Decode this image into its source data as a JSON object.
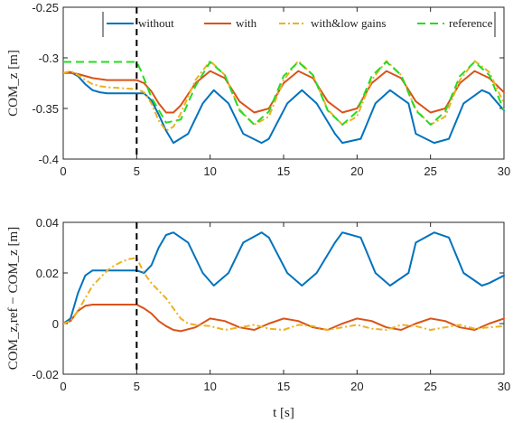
{
  "chart_data": [
    {
      "type": "line",
      "ylabel": "COM_z [m]",
      "xlim": [
        0,
        30
      ],
      "ylim": [
        -0.4,
        -0.25
      ],
      "xticks": [
        0,
        5,
        10,
        15,
        20,
        25,
        30
      ],
      "yticks": [
        -0.4,
        -0.35,
        -0.3,
        -0.25
      ],
      "xtick_labels": [
        "0",
        "5",
        "10",
        "15",
        "20",
        "25",
        "30"
      ],
      "ytick_labels": [
        "-0.4",
        "-0.35",
        "-0.3",
        "-0.25"
      ],
      "grid": false,
      "legend": "top, horizontal",
      "vline_x": 5,
      "series": [
        {
          "name": "without",
          "color": "#0072BD",
          "style": "solid",
          "x": [
            0,
            0.5,
            1.0,
            1.5,
            2.0,
            2.5,
            3,
            4,
            5,
            5.5,
            6.0,
            6.5,
            7.0,
            7.5,
            8.5,
            9.5,
            10.25,
            11.25,
            12.25,
            13.5,
            14.0,
            15.25,
            16.25,
            17.25,
            18.5,
            19.0,
            20.25,
            21.25,
            22.25,
            23.5,
            24.0,
            25.25,
            26.25,
            27.25,
            28.5,
            29.0,
            30.0
          ],
          "y": [
            -0.315,
            -0.314,
            -0.318,
            -0.326,
            -0.332,
            -0.334,
            -0.335,
            -0.335,
            -0.335,
            -0.335,
            -0.342,
            -0.356,
            -0.372,
            -0.384,
            -0.375,
            -0.345,
            -0.332,
            -0.345,
            -0.375,
            -0.384,
            -0.38,
            -0.345,
            -0.332,
            -0.345,
            -0.375,
            -0.384,
            -0.38,
            -0.345,
            -0.332,
            -0.345,
            -0.375,
            -0.384,
            -0.38,
            -0.345,
            -0.332,
            -0.335,
            -0.352
          ]
        },
        {
          "name": "with",
          "color": "#D95319",
          "style": "solid",
          "x": [
            0,
            0.5,
            1.0,
            2.0,
            3.0,
            4.0,
            5.0,
            5.5,
            6.0,
            6.5,
            7.0,
            7.5,
            8.0,
            9.0,
            10.0,
            11.0,
            12.0,
            13.0,
            14.0,
            15.0,
            16.0,
            17.0,
            18.0,
            19.0,
            20.0,
            21.0,
            22.0,
            23.0,
            24.0,
            25.0,
            26.0,
            27.0,
            28.0,
            29.0,
            30.0
          ],
          "y": [
            -0.315,
            -0.315,
            -0.316,
            -0.32,
            -0.322,
            -0.322,
            -0.322,
            -0.325,
            -0.333,
            -0.345,
            -0.354,
            -0.354,
            -0.347,
            -0.325,
            -0.313,
            -0.32,
            -0.343,
            -0.354,
            -0.35,
            -0.325,
            -0.313,
            -0.32,
            -0.343,
            -0.354,
            -0.35,
            -0.325,
            -0.313,
            -0.32,
            -0.343,
            -0.354,
            -0.35,
            -0.325,
            -0.313,
            -0.32,
            -0.334
          ]
        },
        {
          "name": "with&low gains",
          "color": "#EDB120",
          "style": "dashdot",
          "x": [
            0,
            0.5,
            1.0,
            1.5,
            2.0,
            2.5,
            3.0,
            4.0,
            5.0,
            5.5,
            6.0,
            6.5,
            7.0,
            7.5,
            8.0,
            9.0,
            10.0,
            11.0,
            12.0,
            13.0,
            14.0,
            15.0,
            16.0,
            17.0,
            18.0,
            19.0,
            20.0,
            21.0,
            22.0,
            23.0,
            24.0,
            25.0,
            26.0,
            27.0,
            28.0,
            29.0,
            30.0
          ],
          "y": [
            -0.315,
            -0.313,
            -0.317,
            -0.322,
            -0.326,
            -0.328,
            -0.329,
            -0.33,
            -0.331,
            -0.334,
            -0.345,
            -0.362,
            -0.372,
            -0.368,
            -0.355,
            -0.322,
            -0.303,
            -0.317,
            -0.351,
            -0.366,
            -0.358,
            -0.322,
            -0.303,
            -0.317,
            -0.351,
            -0.366,
            -0.358,
            -0.322,
            -0.303,
            -0.317,
            -0.351,
            -0.366,
            -0.358,
            -0.322,
            -0.303,
            -0.314,
            -0.345
          ]
        },
        {
          "name": "reference",
          "color": "#22DD22",
          "style": "dashed",
          "x": [
            0,
            1,
            2,
            3,
            4,
            5.0,
            5.3,
            6.0,
            7.0,
            8.0,
            9.0,
            10.0,
            11.0,
            12.0,
            13.0,
            14.0,
            15.0,
            16.0,
            17.0,
            18.0,
            19.0,
            20.0,
            21.0,
            22.0,
            23.0,
            24.0,
            25.0,
            26.0,
            27.0,
            28.0,
            29.0,
            30.0
          ],
          "y": [
            -0.304,
            -0.304,
            -0.304,
            -0.304,
            -0.304,
            -0.304,
            -0.313,
            -0.339,
            -0.364,
            -0.361,
            -0.328,
            -0.304,
            -0.317,
            -0.352,
            -0.366,
            -0.353,
            -0.318,
            -0.304,
            -0.317,
            -0.352,
            -0.366,
            -0.353,
            -0.318,
            -0.304,
            -0.317,
            -0.352,
            -0.366,
            -0.353,
            -0.318,
            -0.304,
            -0.317,
            -0.352
          ]
        }
      ]
    },
    {
      "type": "line",
      "xlabel": "t [s]",
      "ylabel": "COM_z,ref − COM_z [m]",
      "xlim": [
        0,
        30
      ],
      "ylim": [
        -0.02,
        0.04
      ],
      "xticks": [
        0,
        5,
        10,
        15,
        20,
        25,
        30
      ],
      "yticks": [
        -0.02,
        0,
        0.02,
        0.04
      ],
      "xtick_labels": [
        "0",
        "5",
        "10",
        "15",
        "20",
        "25",
        "30"
      ],
      "ytick_labels": [
        "-0.02",
        "0",
        "0.02",
        "0.04"
      ],
      "grid": false,
      "vline_x": 5,
      "series": [
        {
          "color": "#0072BD",
          "style": "solid",
          "x": [
            0,
            0.5,
            1.0,
            1.5,
            2.0,
            2.5,
            3.0,
            4.0,
            5.0,
            5.5,
            6.0,
            6.5,
            7.0,
            7.5,
            8.5,
            9.5,
            10.25,
            11.25,
            12.25,
            13.5,
            14.0,
            15.25,
            16.25,
            17.25,
            18.5,
            19.0,
            20.25,
            21.25,
            22.25,
            23.5,
            24.0,
            25.25,
            26.25,
            27.25,
            28.5,
            29.0,
            30.0
          ],
          "y": [
            0,
            0.002,
            0.012,
            0.019,
            0.021,
            0.021,
            0.021,
            0.021,
            0.021,
            0.02,
            0.023,
            0.03,
            0.035,
            0.036,
            0.032,
            0.02,
            0.015,
            0.02,
            0.032,
            0.036,
            0.034,
            0.02,
            0.015,
            0.02,
            0.032,
            0.036,
            0.034,
            0.02,
            0.015,
            0.02,
            0.032,
            0.036,
            0.034,
            0.02,
            0.015,
            0.016,
            0.019
          ]
        },
        {
          "color": "#D95319",
          "style": "solid",
          "x": [
            0,
            0.5,
            1.0,
            1.5,
            2.0,
            3.0,
            4.0,
            5.0,
            5.5,
            6.0,
            6.5,
            7.0,
            7.5,
            8.0,
            9.0,
            10.0,
            11.0,
            12.0,
            13.0,
            14.0,
            15.0,
            16.0,
            17.0,
            18.0,
            19.0,
            20.0,
            21.0,
            22.0,
            23.0,
            24.0,
            25.0,
            26.0,
            27.0,
            28.0,
            29.0,
            30.0
          ],
          "y": [
            0,
            0.001,
            0.005,
            0.007,
            0.0075,
            0.0075,
            0.0075,
            0.0075,
            0.006,
            0.004,
            0.001,
            -0.001,
            -0.0025,
            -0.003,
            -0.0015,
            0.002,
            0.001,
            -0.0015,
            -0.0025,
            0,
            0.002,
            0.001,
            -0.0015,
            -0.0025,
            0,
            0.002,
            0.001,
            -0.0015,
            -0.0025,
            0,
            0.002,
            0.001,
            -0.0015,
            -0.0025,
            0,
            0.002
          ]
        },
        {
          "color": "#EDB120",
          "style": "dashdot",
          "x": [
            0,
            0.5,
            1.0,
            1.5,
            2.0,
            2.5,
            3.0,
            3.5,
            4.0,
            4.5,
            5.0,
            5.5,
            6.0,
            6.5,
            7.0,
            7.5,
            8.0,
            8.5,
            9.0,
            10.0,
            11.0,
            12.0,
            13.0,
            14.0,
            15.0,
            16.0,
            17.0,
            18.0,
            19.0,
            20.0,
            21.0,
            22.0,
            23.0,
            24.0,
            25.0,
            26.0,
            27.0,
            28.0,
            29.0,
            30.0
          ],
          "y": [
            0,
            0.001,
            0.005,
            0.01,
            0.015,
            0.018,
            0.021,
            0.023,
            0.0245,
            0.0255,
            0.026,
            0.02,
            0.016,
            0.013,
            0.01,
            0.006,
            0.002,
            0,
            -0.0005,
            -0.001,
            -0.0025,
            -0.0015,
            -0.0005,
            -0.002,
            -0.0025,
            -0.0005,
            -0.001,
            -0.0025,
            -0.0015,
            -0.0005,
            -0.002,
            -0.0025,
            -0.0005,
            -0.001,
            -0.0025,
            -0.0015,
            -0.0005,
            -0.002,
            -0.0015,
            -0.001
          ]
        }
      ]
    }
  ]
}
